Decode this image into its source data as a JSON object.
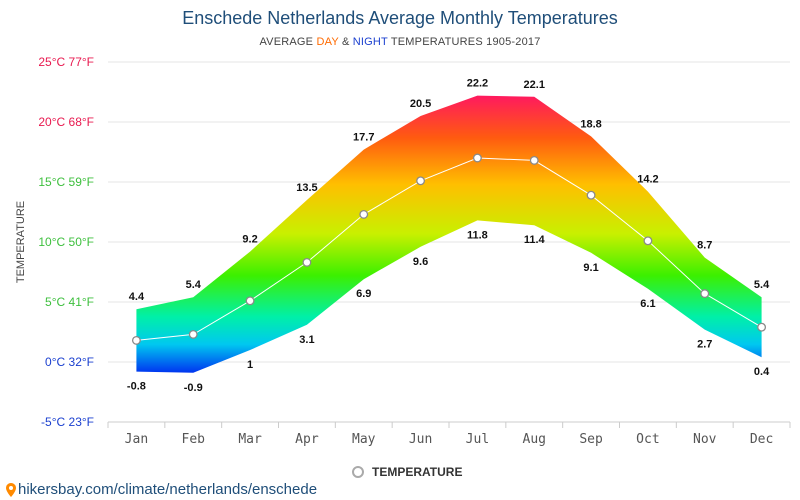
{
  "header": {
    "title": "Enschede Netherlands Average Monthly Temperatures",
    "subtitle_prefix": "AVERAGE ",
    "subtitle_day": "DAY",
    "subtitle_amp": " & ",
    "subtitle_night": "NIGHT",
    "subtitle_suffix": " TEMPERATURES 1905-2017"
  },
  "legend": {
    "label": "TEMPERATURE"
  },
  "footer": {
    "link": "hikersbay.com/climate/netherlands/enschede"
  },
  "chart_data": {
    "type": "area",
    "title": "Enschede Netherlands Average Monthly Temperatures",
    "ylabel": "TEMPERATURE",
    "ylim": [
      -5,
      25
    ],
    "grid": true,
    "legend_position": "bottom",
    "y_ticks": [
      {
        "value": 25,
        "label": "25°C 77°F",
        "color": "#e8194f"
      },
      {
        "value": 20,
        "label": "20°C 68°F",
        "color": "#e8194f"
      },
      {
        "value": 15,
        "label": "15°C 59°F",
        "color": "#3dbf3d"
      },
      {
        "value": 10,
        "label": "10°C 50°F",
        "color": "#3dbf3d"
      },
      {
        "value": 5,
        "label": "5°C 41°F",
        "color": "#3dbf3d"
      },
      {
        "value": 0,
        "label": "0°C 32°F",
        "color": "#1a3fcf"
      },
      {
        "value": -5,
        "label": "-5°C 23°F",
        "color": "#1a3fcf"
      }
    ],
    "categories": [
      "Jan",
      "Feb",
      "Mar",
      "Apr",
      "May",
      "Jun",
      "Jul",
      "Aug",
      "Sep",
      "Oct",
      "Nov",
      "Dec"
    ],
    "series": [
      {
        "name": "DAY",
        "values": [
          4.4,
          5.4,
          9.2,
          13.5,
          17.7,
          20.5,
          22.2,
          22.1,
          18.8,
          14.2,
          8.7,
          5.4
        ]
      },
      {
        "name": "NIGHT",
        "values": [
          -0.8,
          -0.9,
          1,
          3.1,
          6.9,
          9.6,
          11.8,
          11.4,
          9.1,
          6.1,
          2.7,
          0.4
        ]
      },
      {
        "name": "TEMPERATURE",
        "values": [
          1.8,
          2.3,
          5.1,
          8.3,
          12.3,
          15.1,
          17.0,
          16.8,
          13.9,
          10.1,
          5.7,
          2.9
        ]
      }
    ]
  }
}
